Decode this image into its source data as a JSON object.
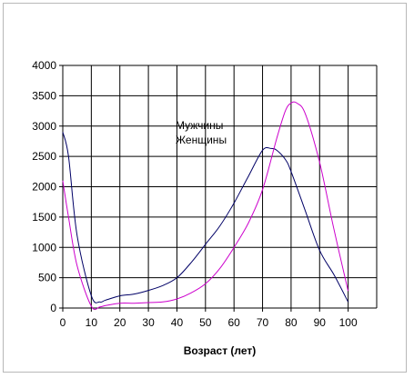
{
  "chart_data": {
    "type": "line",
    "title": "",
    "xlabel": "Возраст (лет)",
    "ylabel": "",
    "xlim": [
      0,
      110
    ],
    "ylim": [
      0,
      4000
    ],
    "x_ticks": [
      0,
      10,
      20,
      30,
      40,
      50,
      60,
      70,
      80,
      90,
      100
    ],
    "y_ticks": [
      0,
      500,
      1000,
      1500,
      2000,
      2500,
      3000,
      3500,
      4000
    ],
    "grid": true,
    "legend": [
      "Мужчины",
      "Женщины"
    ],
    "legend_position": "center",
    "series": [
      {
        "name": "Мужчины",
        "color": "#000066",
        "x": [
          0,
          2,
          5,
          10,
          13,
          15,
          20,
          25,
          30,
          35,
          40,
          45,
          50,
          55,
          60,
          65,
          70,
          73,
          75,
          78,
          80,
          85,
          90,
          95,
          100
        ],
        "y": [
          2900,
          2500,
          1200,
          200,
          100,
          130,
          200,
          230,
          290,
          370,
          500,
          750,
          1050,
          1350,
          1730,
          2170,
          2600,
          2630,
          2600,
          2450,
          2250,
          1600,
          950,
          550,
          100
        ]
      },
      {
        "name": "Женщины",
        "color": "#cc00cc",
        "x": [
          0,
          2,
          5,
          10,
          13,
          15,
          20,
          25,
          30,
          35,
          40,
          45,
          50,
          55,
          60,
          65,
          70,
          75,
          78,
          80,
          82,
          85,
          90,
          95,
          100
        ],
        "y": [
          2100,
          1500,
          700,
          30,
          20,
          40,
          80,
          80,
          90,
          100,
          150,
          250,
          400,
          650,
          1000,
          1400,
          1950,
          2800,
          3250,
          3380,
          3380,
          3200,
          2400,
          1300,
          280
        ]
      }
    ]
  }
}
